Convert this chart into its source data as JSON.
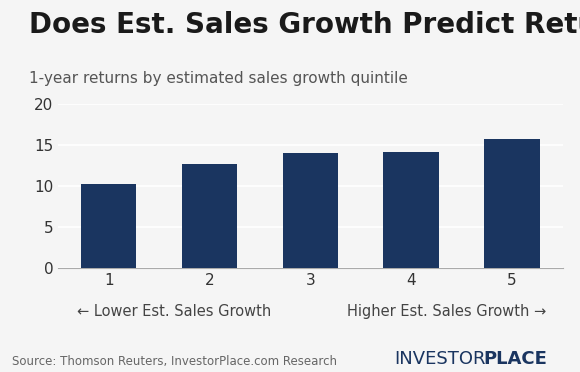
{
  "title": "Does Est. Sales Growth Predict Returns?",
  "subtitle": "1-year returns by estimated sales growth quintile",
  "categories": [
    "1",
    "2",
    "3",
    "4",
    "5"
  ],
  "values": [
    10.2,
    12.7,
    14.0,
    14.1,
    15.8
  ],
  "bar_color": "#1a3560",
  "ylim": [
    0,
    20
  ],
  "yticks": [
    0,
    5,
    10,
    15,
    20
  ],
  "xlabel_left": "← Lower Est. Sales Growth",
  "xlabel_right": "Higher Est. Sales Growth →",
  "source_text": "Source: Thomson Reuters, InvestorPlace.com Research",
  "logo_text_main": "INVESTOR",
  "logo_text_bold": "PLACE",
  "background_color": "#f5f5f5",
  "title_fontsize": 20,
  "subtitle_fontsize": 11,
  "tick_fontsize": 11,
  "xlabel_fontsize": 10.5,
  "source_fontsize": 8.5,
  "logo_fontsize": 13
}
